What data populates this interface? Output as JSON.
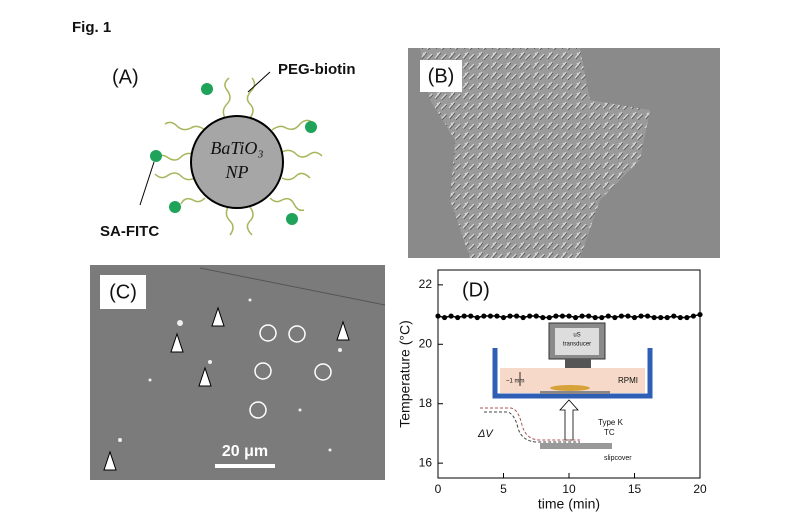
{
  "figure_label": "Fig. 1",
  "panel_a": {
    "label": "(A)",
    "particle": [
      "BaTiO₃",
      "NP"
    ],
    "peg": "PEG-biotin",
    "sa": "SA-FITC"
  },
  "panel_b": {
    "label": "(B)"
  },
  "panel_c": {
    "label": "(C)",
    "scale_bar": "20 μm"
  },
  "chart_data": {
    "type": "line",
    "label": "(D)",
    "x_label": "time (min)",
    "y_label": "Temperature (°C)",
    "xlim": [
      0,
      20
    ],
    "ylim": [
      15.5,
      22.5
    ],
    "xticks": [
      0,
      5,
      10,
      15,
      20
    ],
    "yticks": [
      16,
      18,
      20,
      22
    ],
    "color": "#000000",
    "x": [
      0,
      0.5,
      1,
      1.5,
      2,
      2.5,
      3,
      3.5,
      4,
      4.5,
      5,
      5.5,
      6,
      6.5,
      7,
      7.5,
      8,
      8.5,
      9,
      9.5,
      10,
      10.5,
      11,
      11.5,
      12,
      12.5,
      13,
      13.5,
      14,
      14.5,
      15,
      15.5,
      16,
      16.5,
      17,
      17.5,
      18,
      18.5,
      19,
      19.5,
      20
    ],
    "values": [
      20.95,
      20.9,
      20.95,
      20.9,
      20.95,
      20.95,
      20.9,
      20.95,
      20.95,
      20.95,
      20.9,
      20.95,
      20.95,
      20.9,
      20.95,
      20.95,
      20.9,
      20.9,
      20.95,
      20.95,
      20.95,
      20.9,
      20.95,
      20.95,
      20.9,
      20.9,
      20.95,
      20.9,
      20.95,
      20.95,
      20.9,
      20.95,
      20.95,
      20.9,
      20.9,
      20.9,
      20.95,
      20.9,
      20.9,
      20.95,
      21.0
    ],
    "inset": {
      "transducer": [
        "uS",
        "transducer"
      ],
      "gap": "~1 mm",
      "medium": "RPMI",
      "thermocouple": [
        "Type K",
        "TC"
      ],
      "signal": "ΔV",
      "cover": "slipcover"
    }
  }
}
